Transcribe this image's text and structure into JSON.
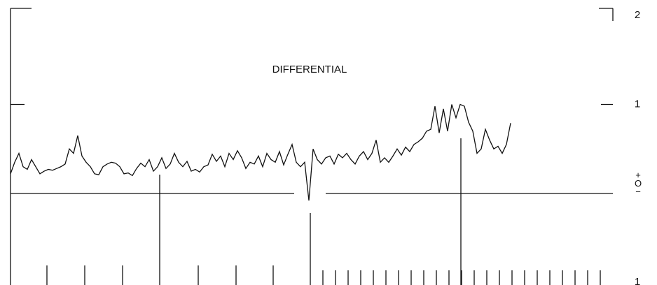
{
  "chart_data": {
    "type": "line",
    "title": "DIFFERENTIAL",
    "series": [
      {
        "color": "#111111",
        "values": [
          0.22,
          0.35,
          0.45,
          0.3,
          0.27,
          0.38,
          0.3,
          0.22,
          0.25,
          0.27,
          0.26,
          0.28,
          0.3,
          0.33,
          0.5,
          0.45,
          0.65,
          0.42,
          0.35,
          0.3,
          0.22,
          0.21,
          0.3,
          0.33,
          0.35,
          0.34,
          0.3,
          0.22,
          0.23,
          0.2,
          0.28,
          0.34,
          0.3,
          0.38,
          0.25,
          0.3,
          0.4,
          0.28,
          0.33,
          0.45,
          0.35,
          0.3,
          0.36,
          0.25,
          0.27,
          0.24,
          0.3,
          0.32,
          0.44,
          0.36,
          0.42,
          0.3,
          0.45,
          0.38,
          0.48,
          0.4,
          0.28,
          0.35,
          0.33,
          0.42,
          0.3,
          0.45,
          0.38,
          0.35,
          0.47,
          0.32,
          0.44,
          0.55,
          0.35,
          0.3,
          0.35,
          -0.08,
          0.5,
          0.38,
          0.33,
          0.4,
          0.42,
          0.33,
          0.44,
          0.4,
          0.45,
          0.38,
          0.33,
          0.42,
          0.47,
          0.38,
          0.45,
          0.6,
          0.35,
          0.4,
          0.35,
          0.42,
          0.5,
          0.43,
          0.52,
          0.47,
          0.55,
          0.58,
          0.62,
          0.7,
          0.72,
          0.98,
          0.68,
          0.95,
          0.7,
          1.0,
          0.85,
          1.0,
          0.98,
          0.8,
          0.7,
          0.45,
          0.5,
          0.72,
          0.6,
          0.5,
          0.53,
          0.45,
          0.55,
          0.79
        ]
      }
    ],
    "ylim": [
      -1.03,
      2.08
    ],
    "yticks": [
      2,
      1,
      {
        "value": 0,
        "label": "+O−"
      },
      {
        "value": -1,
        "label": "1"
      }
    ]
  }
}
